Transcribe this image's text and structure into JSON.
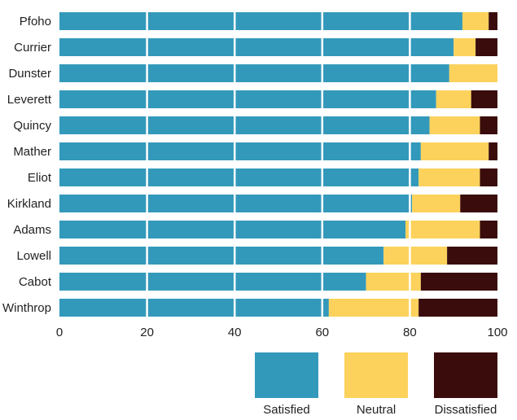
{
  "chart_data": {
    "type": "bar",
    "orientation": "horizontal",
    "stacked": true,
    "percent": true,
    "categories": [
      "Pfoho",
      "Currier",
      "Dunster",
      "Leverett",
      "Quincy",
      "Mather",
      "Eliot",
      "Kirkland",
      "Adams",
      "Lowell",
      "Cabot",
      "Winthrop"
    ],
    "series": [
      {
        "name": "Satisfied",
        "color": "#3399bb",
        "values": [
          92,
          90,
          89,
          86,
          84.5,
          82.5,
          82,
          80.5,
          79,
          74,
          70,
          61.5
        ]
      },
      {
        "name": "Neutral",
        "color": "#fcd25c",
        "values": [
          6,
          5,
          11,
          8,
          11.5,
          15.5,
          14,
          11,
          17,
          14.5,
          12.5,
          20.5
        ]
      },
      {
        "name": "Dissatisfied",
        "color": "#3a0c0c",
        "values": [
          2,
          5,
          0,
          6,
          4,
          2,
          4,
          8.5,
          4,
          11.5,
          17.5,
          18
        ]
      }
    ],
    "xlim": [
      0,
      100
    ],
    "xticks": [
      "0",
      "20",
      "40",
      "60",
      "80",
      "100"
    ],
    "grid": "vertical",
    "legend_position": "bottom-right"
  }
}
